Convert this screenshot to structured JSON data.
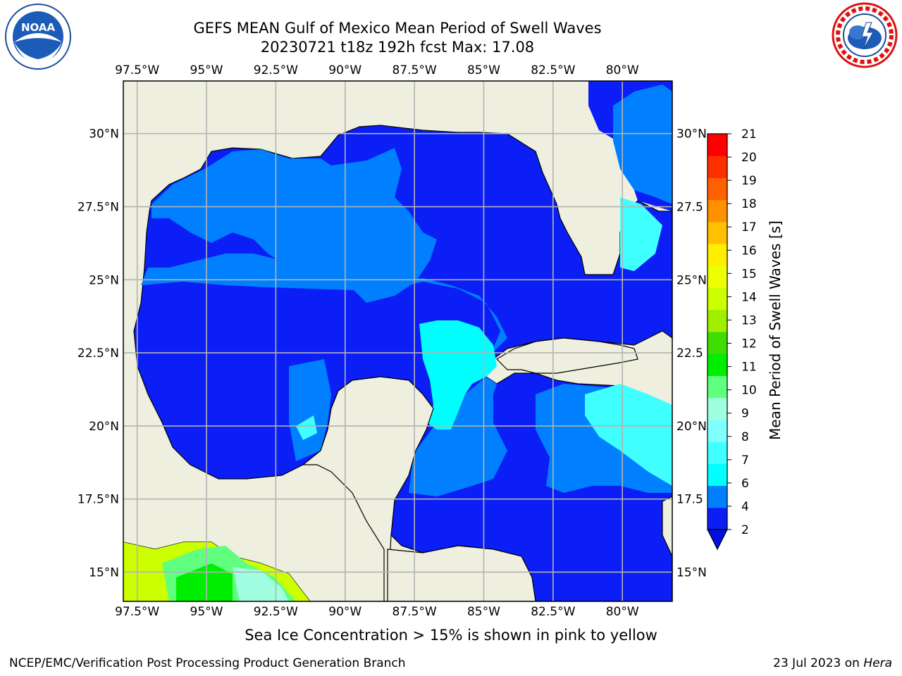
{
  "header": {
    "title_line1": "GEFS MEAN Gulf of Mexico Mean Period of Swell Waves",
    "title_line2": "20230721 t18z 192h fcst   Max: 17.08"
  },
  "logos": {
    "left": {
      "name": "NOAA",
      "text": "NOAA",
      "ring_text": "NATIONAL OCEANIC AND ATMOSPHERIC ADMINISTRATION · U.S. DEPARTMENT OF COMMERCE"
    },
    "right": {
      "name": "National Weather Service",
      "ring_text": "NATIONAL WEATHER SERVICE"
    }
  },
  "map": {
    "lon_labels": [
      "97.5°W",
      "95°W",
      "92.5°W",
      "90°W",
      "87.5°W",
      "85°W",
      "82.5°W",
      "80°W"
    ],
    "lon_values": [
      -97.5,
      -95,
      -92.5,
      -90,
      -87.5,
      -85,
      -82.5,
      -80
    ],
    "lat_labels_left": [
      "30°N",
      "27.5°N",
      "25°N",
      "22.5°N",
      "20°N",
      "17.5°N",
      "15°N"
    ],
    "lat_labels_right": [
      "30°N",
      "27.5",
      "25°N",
      "22.5",
      "20°N",
      "17.5",
      "15°N"
    ],
    "lat_values": [
      30,
      27.5,
      25,
      22.5,
      20,
      17.5,
      15
    ],
    "lon_range": [
      -98,
      -78.2
    ],
    "lat_range": [
      14,
      31.8
    ],
    "land_color": "#efefdf",
    "gridline_color": "#b3b3b3"
  },
  "colorbar": {
    "label": "Mean Period of Swell Waves [s]",
    "ticks": [
      "2",
      "4",
      "6",
      "7",
      "8",
      "9",
      "10",
      "11",
      "12",
      "13",
      "14",
      "15",
      "16",
      "17",
      "18",
      "19",
      "20",
      "21"
    ],
    "colors": [
      "#0a1ef5",
      "#0080ff",
      "#00ffff",
      "#40ffff",
      "#80ffff",
      "#a0ffe0",
      "#60ff80",
      "#00ee00",
      "#40dd00",
      "#a0ee00",
      "#ccff00",
      "#eeff00",
      "#ffee00",
      "#ffc000",
      "#ff9000",
      "#ff6000",
      "#ff3000",
      "#ff0000"
    ],
    "extend_color": "#0010e0"
  },
  "caption": "Sea Ice Concentration > 15% is shown in pink to yellow",
  "footer": {
    "left": "NCEP/EMC/Verification Post Processing Product Generation Branch",
    "right_date": "23 Jul 2023 on ",
    "right_machine": "Hera"
  }
}
